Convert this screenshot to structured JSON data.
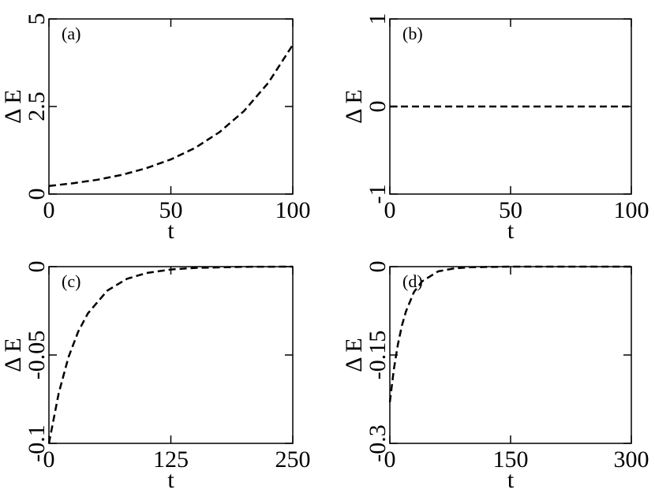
{
  "chart_data": [
    {
      "type": "line",
      "annotation": "(a)",
      "xlabel": "t",
      "ylabel": "Δ E",
      "x": [
        0,
        10,
        20,
        30,
        40,
        50,
        60,
        70,
        80,
        90,
        100
      ],
      "series": [
        {
          "color": "#000000",
          "linestyle": "dashed",
          "values": [
            0.23,
            0.31,
            0.41,
            0.55,
            0.74,
            0.99,
            1.32,
            1.77,
            2.37,
            3.18,
            4.26
          ]
        }
      ],
      "xlim": [
        0,
        100
      ],
      "xticks": [
        0,
        50,
        100
      ],
      "ylim": [
        0,
        5
      ],
      "yticks": [
        0,
        2.5,
        5
      ]
    },
    {
      "type": "line",
      "annotation": "(b)",
      "xlabel": "t",
      "ylabel": "Δ E",
      "x": [
        0,
        100
      ],
      "series": [
        {
          "color": "#000000",
          "linestyle": "dashed",
          "values": [
            0,
            0
          ]
        }
      ],
      "xlim": [
        0,
        100
      ],
      "xticks": [
        0,
        50,
        100
      ],
      "ylim": [
        -1,
        1
      ],
      "yticks": [
        -1,
        0,
        1
      ]
    },
    {
      "type": "line",
      "annotation": "(c)",
      "xlabel": "t",
      "ylabel": "Δ E",
      "x": [
        0,
        10,
        20,
        30,
        40,
        60,
        80,
        100,
        125,
        150,
        200,
        250
      ],
      "series": [
        {
          "color": "#000000",
          "linestyle": "dashed",
          "values": [
            -0.1,
            -0.0717,
            -0.0513,
            -0.0368,
            -0.0264,
            -0.0135,
            -0.0069,
            -0.0036,
            -0.0016,
            -0.0007,
            -0.0001,
            0
          ]
        }
      ],
      "xlim": [
        0,
        250
      ],
      "xticks": [
        0,
        125,
        250
      ],
      "ylim": [
        -0.1,
        0
      ],
      "yticks": [
        -0.1,
        -0.05,
        0
      ]
    },
    {
      "type": "line",
      "annotation": "(d)",
      "xlabel": "t",
      "ylabel": "Δ E",
      "x": [
        0,
        5,
        10,
        15,
        20,
        30,
        40,
        60,
        80,
        100,
        150,
        200,
        300
      ],
      "series": [
        {
          "color": "#000000",
          "linestyle": "dashed",
          "values": [
            -0.23,
            -0.174,
            -0.132,
            -0.1,
            -0.076,
            -0.043,
            -0.025,
            -0.008,
            -0.003,
            -0.001,
            0,
            0,
            0
          ]
        }
      ],
      "xlim": [
        0,
        300
      ],
      "xticks": [
        0,
        150,
        300
      ],
      "ylim": [
        -0.3,
        0
      ],
      "yticks": [
        -0.3,
        -0.15,
        0
      ]
    }
  ]
}
